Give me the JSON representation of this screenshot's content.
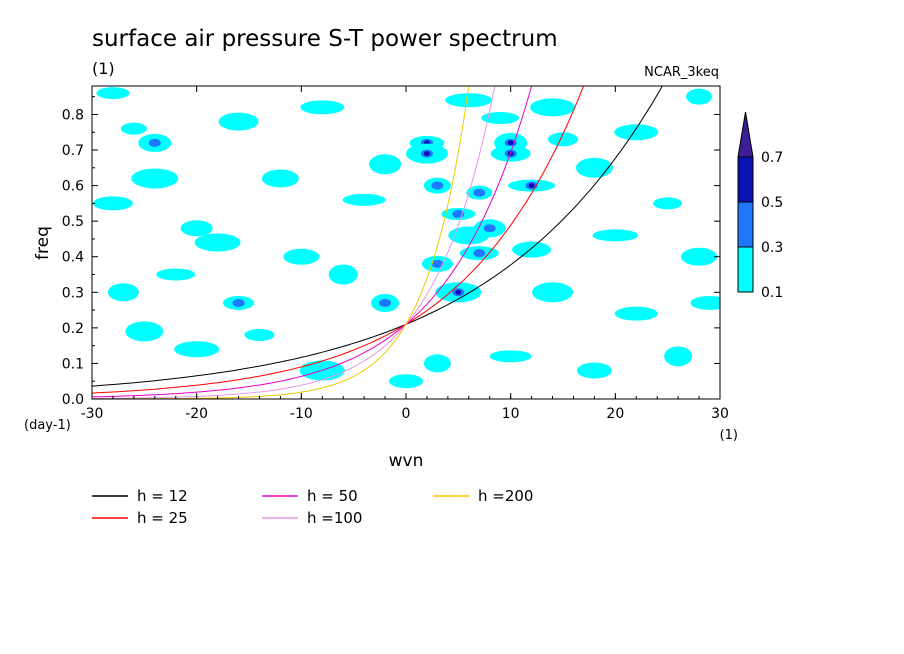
{
  "chart_data": {
    "type": "heatmap",
    "title": "surface air pressure S-T power spectrum",
    "subtitle": "(1)",
    "model_label": "NCAR_3keq",
    "xlabel": "wvn",
    "ylabel": "freq",
    "x_unit": "(1)",
    "y_unit": "(day-1)",
    "xlim": [
      -30,
      30
    ],
    "ylim": [
      0,
      0.88
    ],
    "x_ticks": [
      -30,
      -20,
      -10,
      0,
      10,
      20,
      30
    ],
    "y_ticks": [
      0.0,
      0.1,
      0.2,
      0.3,
      0.4,
      0.5,
      0.6,
      0.7,
      0.8
    ],
    "x_tick_labels": [
      "-30",
      "-20",
      "-10",
      "0",
      "10",
      "20",
      "30"
    ],
    "y_tick_labels": [
      "0.0",
      "0.1",
      "0.2",
      "0.3",
      "0.4",
      "0.5",
      "0.6",
      "0.7",
      "0.8"
    ],
    "colorbar": {
      "levels": [
        "0.1",
        "0.3",
        "0.5",
        "0.7"
      ],
      "colors": [
        "#00ffff",
        "#1e78ff",
        "#0a14b4",
        "#3c1e96"
      ]
    },
    "patches": [
      {
        "x": -26,
        "y": 0.76,
        "level": 0
      },
      {
        "x": -24,
        "y": 0.72,
        "level": 1
      },
      {
        "x": -28,
        "y": 0.55,
        "level": 0
      },
      {
        "x": -24,
        "y": 0.62,
        "level": 0
      },
      {
        "x": -20,
        "y": 0.48,
        "level": 0
      },
      {
        "x": -22,
        "y": 0.35,
        "level": 0
      },
      {
        "x": -18,
        "y": 0.44,
        "level": 0
      },
      {
        "x": -16,
        "y": 0.27,
        "level": 1
      },
      {
        "x": -25,
        "y": 0.19,
        "level": 0
      },
      {
        "x": -20,
        "y": 0.14,
        "level": 0
      },
      {
        "x": -14,
        "y": 0.18,
        "level": 0
      },
      {
        "x": -12,
        "y": 0.62,
        "level": 0
      },
      {
        "x": -8,
        "y": 0.82,
        "level": 0
      },
      {
        "x": -6,
        "y": 0.35,
        "level": 0
      },
      {
        "x": -10,
        "y": 0.4,
        "level": 0
      },
      {
        "x": -4,
        "y": 0.56,
        "level": 0
      },
      {
        "x": -2,
        "y": 0.27,
        "level": 1
      },
      {
        "x": 2,
        "y": 0.72,
        "level": 2
      },
      {
        "x": 2,
        "y": 0.69,
        "level": 2
      },
      {
        "x": 3,
        "y": 0.6,
        "level": 1
      },
      {
        "x": 5,
        "y": 0.52,
        "level": 1
      },
      {
        "x": 6,
        "y": 0.46,
        "level": 0
      },
      {
        "x": 7,
        "y": 0.58,
        "level": 1
      },
      {
        "x": 10,
        "y": 0.72,
        "level": 2
      },
      {
        "x": 10,
        "y": 0.69,
        "level": 2
      },
      {
        "x": 12,
        "y": 0.6,
        "level": 2
      },
      {
        "x": 8,
        "y": 0.48,
        "level": 1
      },
      {
        "x": 7,
        "y": 0.41,
        "level": 1
      },
      {
        "x": 5,
        "y": 0.3,
        "level": 2
      },
      {
        "x": 3,
        "y": 0.38,
        "level": 1
      },
      {
        "x": 9,
        "y": 0.79,
        "level": 0
      },
      {
        "x": 14,
        "y": 0.82,
        "level": 0
      },
      {
        "x": 15,
        "y": 0.73,
        "level": 0
      },
      {
        "x": 18,
        "y": 0.65,
        "level": 0
      },
      {
        "x": 22,
        "y": 0.75,
        "level": 0
      },
      {
        "x": 25,
        "y": 0.55,
        "level": 0
      },
      {
        "x": 28,
        "y": 0.4,
        "level": 0
      },
      {
        "x": 22,
        "y": 0.24,
        "level": 0
      },
      {
        "x": 26,
        "y": 0.12,
        "level": 0
      },
      {
        "x": 18,
        "y": 0.08,
        "level": 0
      },
      {
        "x": 10,
        "y": 0.12,
        "level": 0
      },
      {
        "x": 3,
        "y": 0.1,
        "level": 0
      },
      {
        "x": 0,
        "y": 0.05,
        "level": 0
      },
      {
        "x": 14,
        "y": 0.3,
        "level": 0
      },
      {
        "x": 28,
        "y": 0.85,
        "level": 0
      },
      {
        "x": -28,
        "y": 0.86,
        "level": 0
      },
      {
        "x": -16,
        "y": 0.78,
        "level": 0
      },
      {
        "x": 6,
        "y": 0.84,
        "level": 0
      },
      {
        "x": -2,
        "y": 0.66,
        "level": 0
      },
      {
        "x": 12,
        "y": 0.42,
        "level": 0
      },
      {
        "x": 20,
        "y": 0.46,
        "level": 0
      },
      {
        "x": -27,
        "y": 0.3,
        "level": 0
      },
      {
        "x": 29,
        "y": 0.27,
        "level": 0
      },
      {
        "x": -8,
        "y": 0.08,
        "level": 0
      }
    ],
    "series": [
      {
        "name": "h = 12",
        "h": 12,
        "color": "#000000"
      },
      {
        "name": "h = 25",
        "h": 25,
        "color": "#ff0000"
      },
      {
        "name": "h = 50",
        "h": 50,
        "color": "#e600c8"
      },
      {
        "name": "h =100",
        "h": 100,
        "color": "#e696e6"
      },
      {
        "name": "h =200",
        "h": 200,
        "color": "#f0c800"
      }
    ]
  }
}
